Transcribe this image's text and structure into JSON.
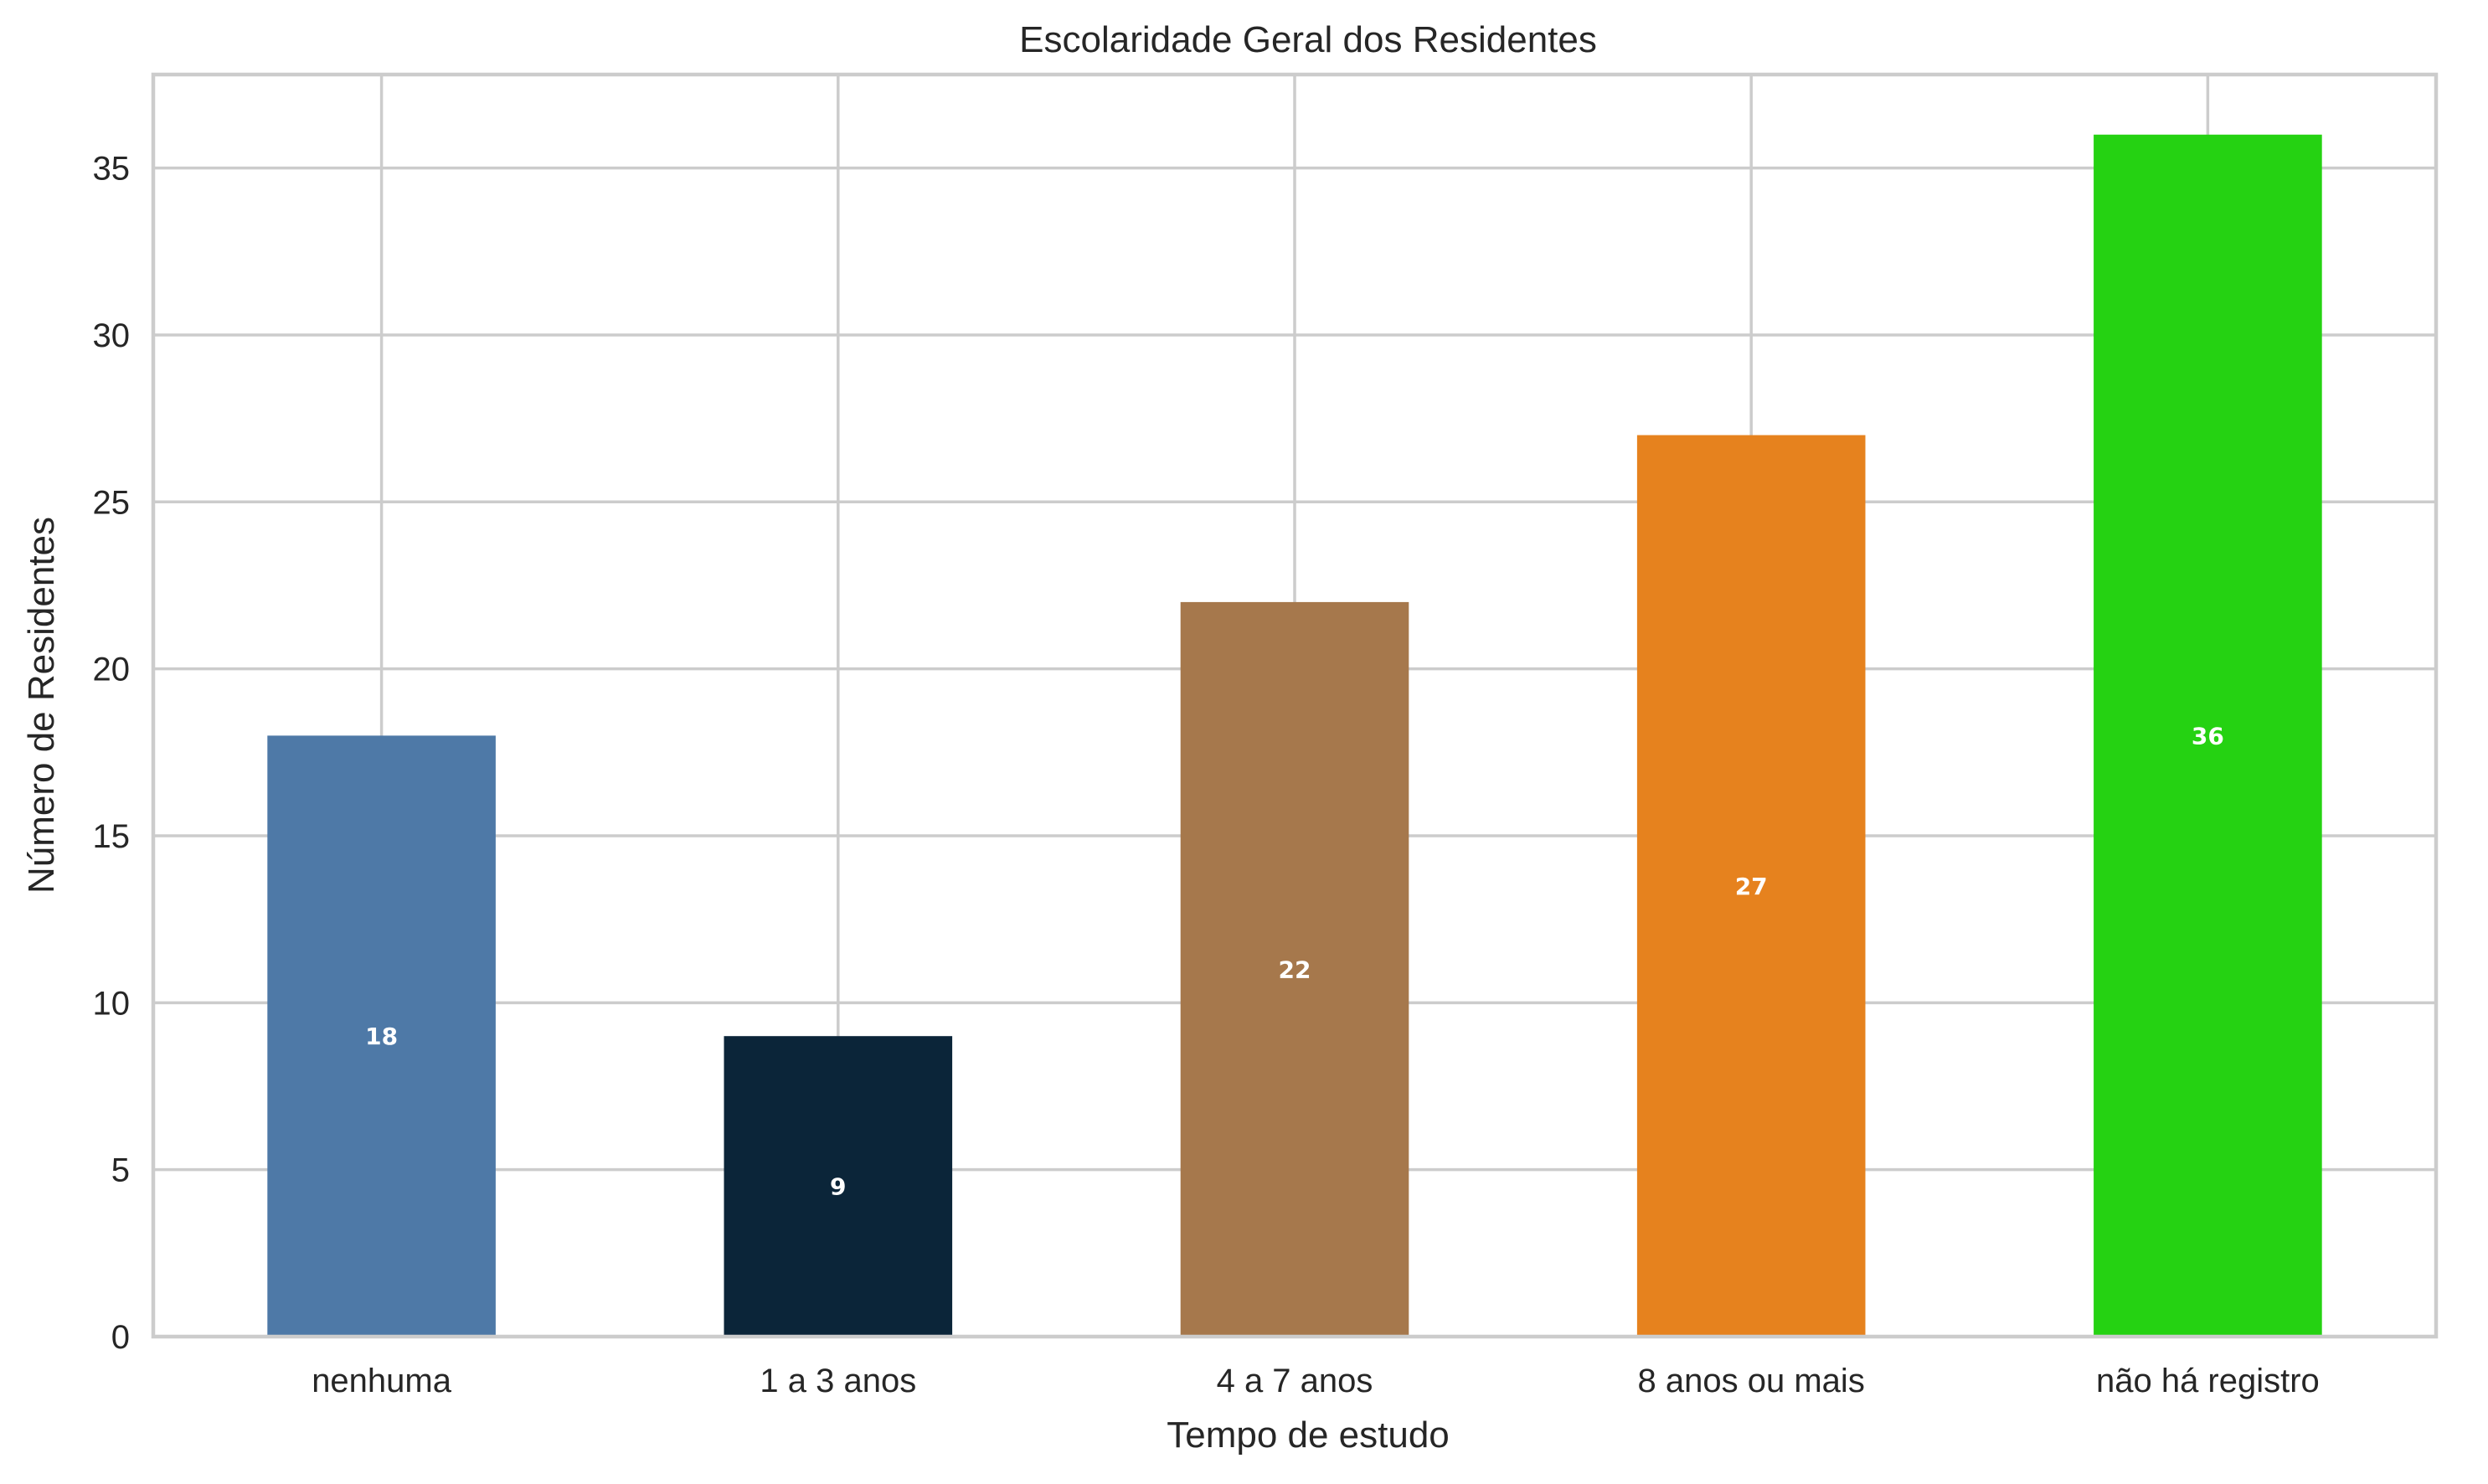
{
  "chart_data": {
    "type": "bar",
    "title": "Escolaridade Geral dos Residentes",
    "xlabel": "Tempo de estudo",
    "ylabel": "Número de Residentes",
    "categories": [
      "nenhuma",
      "1 a 3 anos",
      "4 a 7 anos",
      "8 anos ou mais",
      "não há registro"
    ],
    "values": [
      18,
      9,
      22,
      27,
      36
    ],
    "data_labels": [
      "18",
      "9",
      "22",
      "27",
      "36"
    ],
    "colors": [
      "#4e79a7",
      "#0b2539",
      "#a6784c",
      "#e6821e",
      "#25d212"
    ],
    "ylim": [
      0,
      37.8
    ],
    "yticks": [
      0,
      5,
      10,
      15,
      20,
      25,
      30,
      35
    ],
    "grid": true,
    "legend": "none"
  }
}
